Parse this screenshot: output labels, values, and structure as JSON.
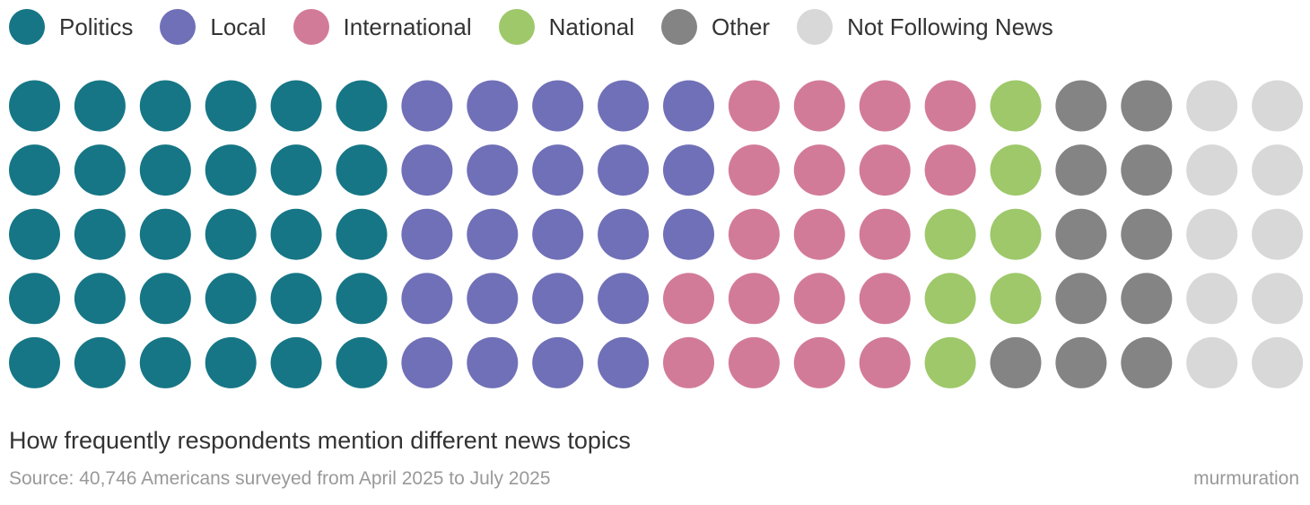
{
  "chart_data": {
    "type": "waffle",
    "title": "How frequently respondents mention different news topics",
    "source": "Source: 40,746 Americans surveyed from April 2025 to July 2025",
    "brand": "murmuration",
    "rows": 5,
    "columns": 20,
    "fill_order": "column-major, top to bottom",
    "series": [
      {
        "name": "Politics",
        "value": 30,
        "color": "#167685"
      },
      {
        "name": "Local",
        "value": 23,
        "color": "#7070b8"
      },
      {
        "name": "International",
        "value": 19,
        "color": "#d27b98"
      },
      {
        "name": "National",
        "value": 7,
        "color": "#9ec86a"
      },
      {
        "name": "Other",
        "value": 11,
        "color": "#848484"
      },
      {
        "name": "Not Following News",
        "value": 10,
        "color": "#d8d8d8"
      }
    ]
  }
}
